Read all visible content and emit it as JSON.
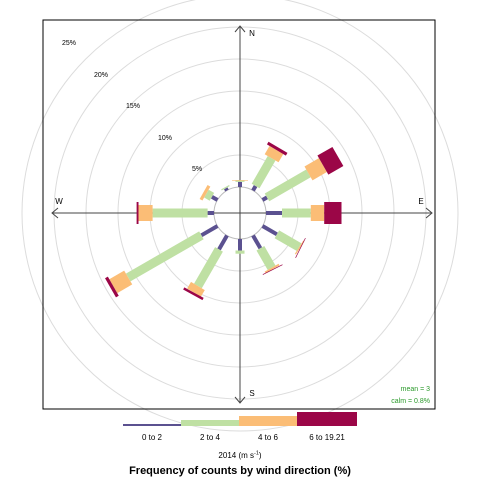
{
  "chart_data": {
    "type": "windrose",
    "title": "Frequency of counts by wind direction (%)",
    "compass": {
      "north": "N",
      "east": "E",
      "south": "S",
      "west": "W"
    },
    "radial_axis": {
      "max": 30,
      "rings": [
        5,
        10,
        15,
        20,
        25,
        30
      ],
      "tick_labels": [
        "5%",
        "10%",
        "15%",
        "20%",
        "25%"
      ]
    },
    "stats": {
      "mean": "mean = 3",
      "calm": "calm = 0.8%"
    },
    "legend": {
      "placement": "bottom",
      "title": "2014 (m s",
      "title_exponent": "-1",
      "title_suffix": ")",
      "bins": [
        {
          "label": "0 to 2",
          "color": "#5b5190"
        },
        {
          "label": "2 to 4",
          "color": "#bfe0a3"
        },
        {
          "label": "4 to 6",
          "color": "#fbbd76"
        },
        {
          "label": "6 to 19.21",
          "color": "#9b0647"
        }
      ]
    },
    "directions_deg": [
      0,
      30,
      60,
      90,
      120,
      150,
      180,
      210,
      240,
      270,
      300,
      330
    ],
    "series": [
      {
        "name": "0 to 2",
        "values": [
          0.8,
          0.8,
          0.8,
          2.5,
          2.6,
          2.3,
          1.8,
          2.5,
          2.9,
          1.0,
          1.0,
          0.4
        ]
      },
      {
        "name": "2 to 4",
        "values": [
          0.2,
          5.0,
          7.5,
          4.5,
          4.0,
          3.5,
          0.5,
          6.6,
          13.2,
          8.6,
          1.0,
          0.2
        ]
      },
      {
        "name": "4 to 6",
        "values": [
          0.1,
          1.5,
          2.6,
          2.1,
          0.2,
          0.3,
          0.0,
          1.2,
          2.7,
          2.2,
          0.5,
          0.0
        ]
      },
      {
        "name": "6 to 19.21",
        "values": [
          0.0,
          0.5,
          2.7,
          2.7,
          0.1,
          0.1,
          0.0,
          0.4,
          0.5,
          0.3,
          0.0,
          0.0
        ]
      }
    ]
  }
}
